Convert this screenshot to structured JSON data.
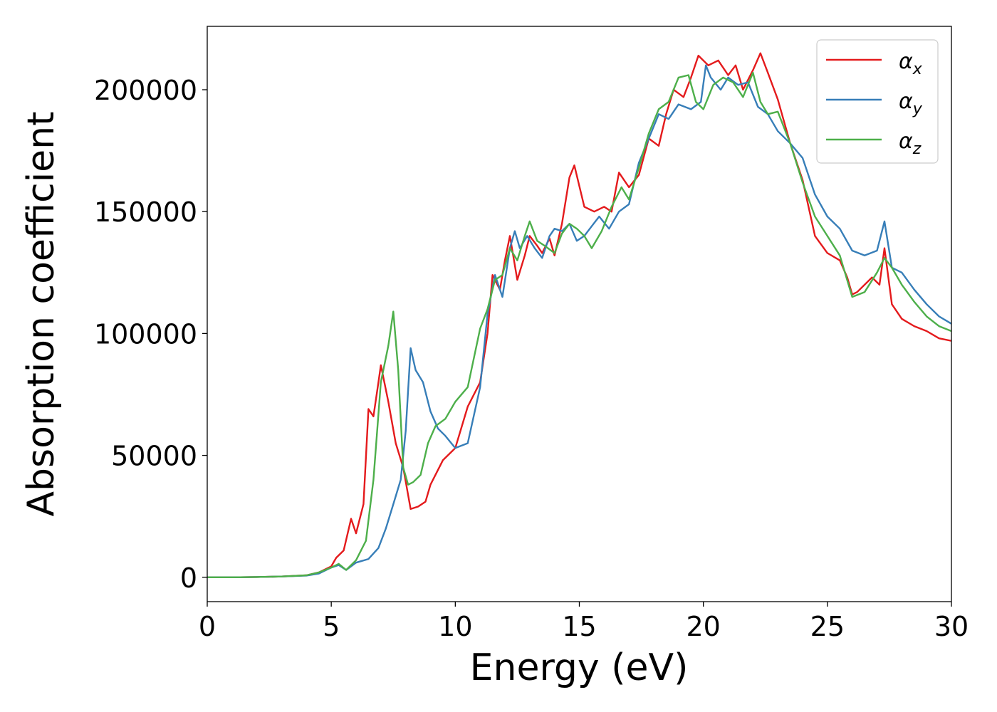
{
  "chart_data": {
    "type": "line",
    "title": "",
    "xlabel": "Energy (eV)",
    "ylabel": "Absorption coefficient",
    "xlim": [
      0,
      30
    ],
    "ylim": [
      -10000,
      226000
    ],
    "xticks": [
      "0",
      "5",
      "10",
      "15",
      "20",
      "25",
      "30"
    ],
    "yticks": [
      "0",
      "50000",
      "100000",
      "150000",
      "200000"
    ],
    "grid": false,
    "legend_position": "top-right",
    "series": [
      {
        "name": "α",
        "subscript": "x",
        "color": "#e41a1c",
        "x": [
          0,
          1,
          2,
          3,
          4,
          4.5,
          5,
          5.2,
          5.5,
          5.8,
          6,
          6.3,
          6.5,
          6.7,
          6.9,
          7.0,
          7.3,
          7.6,
          7.9,
          8.2,
          8.5,
          8.8,
          9.0,
          9.5,
          10,
          10.5,
          11,
          11.3,
          11.5,
          11.8,
          12.0,
          12.2,
          12.5,
          12.8,
          13.0,
          13.3,
          13.5,
          13.8,
          14.0,
          14.3,
          14.6,
          14.8,
          15.2,
          15.6,
          16.0,
          16.3,
          16.6,
          17.0,
          17.4,
          17.8,
          18.2,
          18.5,
          18.8,
          19.2,
          19.5,
          19.8,
          20.2,
          20.6,
          21.0,
          21.3,
          21.6,
          22.0,
          22.3,
          22.6,
          23.0,
          23.5,
          24.0,
          24.5,
          25.0,
          25.5,
          25.8,
          26.0,
          26.2,
          26.5,
          26.8,
          27.1,
          27.3,
          27.6,
          28.0,
          28.5,
          29.0,
          29.5,
          30.0
        ],
        "y": [
          0,
          0,
          100,
          300,
          800,
          2000,
          4500,
          8000,
          11000,
          24000,
          18000,
          30000,
          69000,
          66000,
          80000,
          87000,
          72000,
          55000,
          45000,
          28000,
          29000,
          31000,
          38000,
          48000,
          53000,
          70000,
          80000,
          100000,
          124000,
          118000,
          130000,
          140000,
          122000,
          132000,
          140000,
          136000,
          133000,
          139000,
          132000,
          145000,
          164000,
          169000,
          152000,
          150000,
          152000,
          150000,
          166000,
          160000,
          165000,
          180000,
          177000,
          190000,
          200000,
          197000,
          205000,
          214000,
          210000,
          212000,
          206000,
          210000,
          200000,
          208000,
          215000,
          207000,
          196000,
          178000,
          163000,
          140000,
          133000,
          130000,
          123000,
          116000,
          117000,
          120000,
          123000,
          120000,
          135000,
          112000,
          106000,
          103000,
          101000,
          98000,
          97000
        ]
      },
      {
        "name": "α",
        "subscript": "y",
        "color": "#377eb8",
        "x": [
          0,
          1,
          2,
          3,
          4,
          4.5,
          5,
          5.3,
          5.6,
          6.0,
          6.5,
          6.9,
          7.2,
          7.5,
          7.8,
          8.0,
          8.2,
          8.4,
          8.7,
          9.0,
          9.3,
          9.6,
          10.0,
          10.5,
          11.0,
          11.3,
          11.6,
          11.9,
          12.2,
          12.4,
          12.6,
          12.9,
          13.2,
          13.5,
          13.8,
          14.0,
          14.3,
          14.6,
          14.9,
          15.2,
          15.5,
          15.8,
          16.2,
          16.6,
          17.0,
          17.4,
          17.8,
          18.2,
          18.6,
          19.0,
          19.5,
          19.9,
          20.1,
          20.3,
          20.7,
          21.0,
          21.4,
          21.8,
          22.2,
          22.6,
          23.0,
          23.5,
          24.0,
          24.5,
          25.0,
          25.5,
          26.0,
          26.5,
          27.0,
          27.3,
          27.6,
          28.0,
          28.5,
          29.0,
          29.5,
          30.0
        ],
        "y": [
          0,
          0,
          100,
          300,
          700,
          1500,
          4000,
          5000,
          3000,
          6000,
          7500,
          12000,
          20000,
          30000,
          40000,
          60000,
          94000,
          85000,
          80000,
          68000,
          61000,
          58000,
          53000,
          55000,
          78000,
          108000,
          124000,
          115000,
          135000,
          142000,
          135000,
          140000,
          135000,
          131000,
          140000,
          143000,
          142000,
          145000,
          138000,
          140000,
          144000,
          148000,
          143000,
          150000,
          153000,
          170000,
          180000,
          190000,
          188000,
          194000,
          192000,
          195000,
          210000,
          205000,
          200000,
          205000,
          202000,
          203000,
          193000,
          190000,
          183000,
          178000,
          172000,
          157000,
          148000,
          143000,
          134000,
          132000,
          134000,
          146000,
          127000,
          125000,
          118000,
          112000,
          107000,
          104000
        ]
      },
      {
        "name": "α",
        "subscript": "z",
        "color": "#4daf4a",
        "x": [
          0,
          1,
          2,
          3,
          4,
          4.5,
          5,
          5.3,
          5.6,
          6.0,
          6.4,
          6.7,
          7.0,
          7.3,
          7.5,
          7.7,
          7.9,
          8.1,
          8.3,
          8.6,
          8.9,
          9.2,
          9.6,
          10.0,
          10.5,
          11.0,
          11.3,
          11.6,
          11.9,
          12.2,
          12.5,
          12.8,
          13.0,
          13.3,
          13.6,
          14.0,
          14.3,
          14.6,
          14.9,
          15.2,
          15.5,
          15.9,
          16.3,
          16.7,
          17.0,
          17.4,
          17.8,
          18.2,
          18.6,
          19.0,
          19.4,
          19.7,
          20.0,
          20.4,
          20.8,
          21.2,
          21.6,
          22.0,
          22.3,
          22.6,
          23.0,
          23.5,
          24.0,
          24.5,
          25.0,
          25.5,
          26.0,
          26.5,
          27.0,
          27.3,
          27.6,
          28.0,
          28.5,
          29.0,
          29.5,
          30.0
        ],
        "y": [
          0,
          0,
          100,
          300,
          800,
          2000,
          4000,
          5500,
          3000,
          7000,
          15000,
          40000,
          80000,
          95000,
          109000,
          85000,
          45000,
          38000,
          39000,
          42000,
          55000,
          62000,
          65000,
          72000,
          78000,
          102000,
          110000,
          122000,
          124000,
          135000,
          130000,
          140000,
          146000,
          138000,
          136000,
          133000,
          141000,
          145000,
          143000,
          140000,
          135000,
          142000,
          152000,
          160000,
          155000,
          168000,
          182000,
          192000,
          195000,
          205000,
          206000,
          195000,
          192000,
          202000,
          205000,
          203000,
          197000,
          207000,
          195000,
          190000,
          191000,
          178000,
          162000,
          148000,
          140000,
          132000,
          115000,
          117000,
          125000,
          131000,
          127000,
          120000,
          113000,
          107000,
          103000,
          101000
        ]
      }
    ]
  }
}
